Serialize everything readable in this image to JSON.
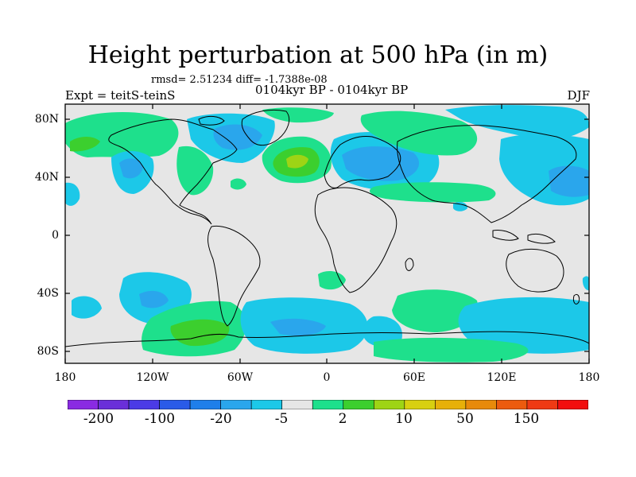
{
  "title": "Height perturbation at 500 hPa (in m)",
  "stats": "rmsd= 2.51234 diff= -1.7388e-08",
  "experiment": "Expt = teitS-teinS",
  "period": "0104kyr BP - 0104kyr BP",
  "season": "DJF",
  "y_ticks": [
    "80N",
    "40N",
    "0",
    "40S",
    "80S"
  ],
  "x_ticks": [
    "180",
    "120W",
    "60W",
    "0",
    "60E",
    "120E",
    "180"
  ],
  "colorbar": {
    "colors": [
      "#8a2be2",
      "#6a2fd9",
      "#4b3be6",
      "#2a5be8",
      "#1f7fea",
      "#2aa6ec",
      "#1cc8e8",
      "#e6e6e6",
      "#1ee08c",
      "#3ccf2e",
      "#9ed415",
      "#d8d010",
      "#e7b009",
      "#e88a0a",
      "#ec5b0e",
      "#ef3a14",
      "#f20e0e"
    ],
    "labels": [
      "-200",
      "-100",
      "-20",
      "-5",
      "2",
      "10",
      "50",
      "150"
    ]
  },
  "colors": {
    "neutral": "#e6e6e6",
    "negative_weak": "#1cc8e8",
    "negative_mid": "#2aa6ec",
    "positive_weak": "#1ee08c",
    "positive_mid": "#3ccf2e",
    "positive_strong": "#9ed415",
    "coastline": "#000000"
  }
}
